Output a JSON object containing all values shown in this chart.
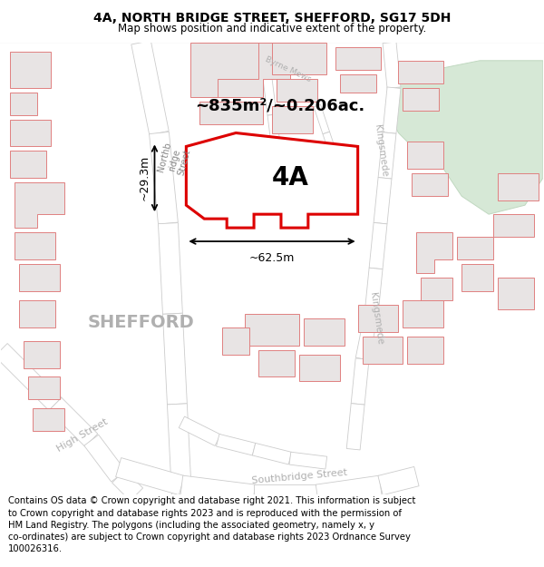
{
  "title": "4A, NORTH BRIDGE STREET, SHEFFORD, SG17 5DH",
  "subtitle": "Map shows position and indicative extent of the property.",
  "footer_text": "Contains OS data © Crown copyright and database right 2021. This information is subject\nto Crown copyright and database rights 2023 and is reproduced with the permission of\nHM Land Registry. The polygons (including the associated geometry, namely x, y\nco-ordinates) are subject to Crown copyright and database rights 2023 Ordnance Survey\n100026316.",
  "map_bg": "#f8f5f5",
  "building_fill": "#e8e4e4",
  "building_stroke": "#e08080",
  "highlight_fill": "#ffffff",
  "highlight_stroke": "#dd0000",
  "green_fill": "#d6e8d6",
  "green_stroke": "#c0d8c0",
  "road_fill": "#ffffff",
  "road_stroke": "#cccccc",
  "label_4A": "4A",
  "area_label": "~835m²/~0.206ac.",
  "dim_h": "~29.3m",
  "dim_w": "~62.5m",
  "title_fontsize": 10,
  "subtitle_fontsize": 8.5,
  "footer_fontsize": 7.2
}
